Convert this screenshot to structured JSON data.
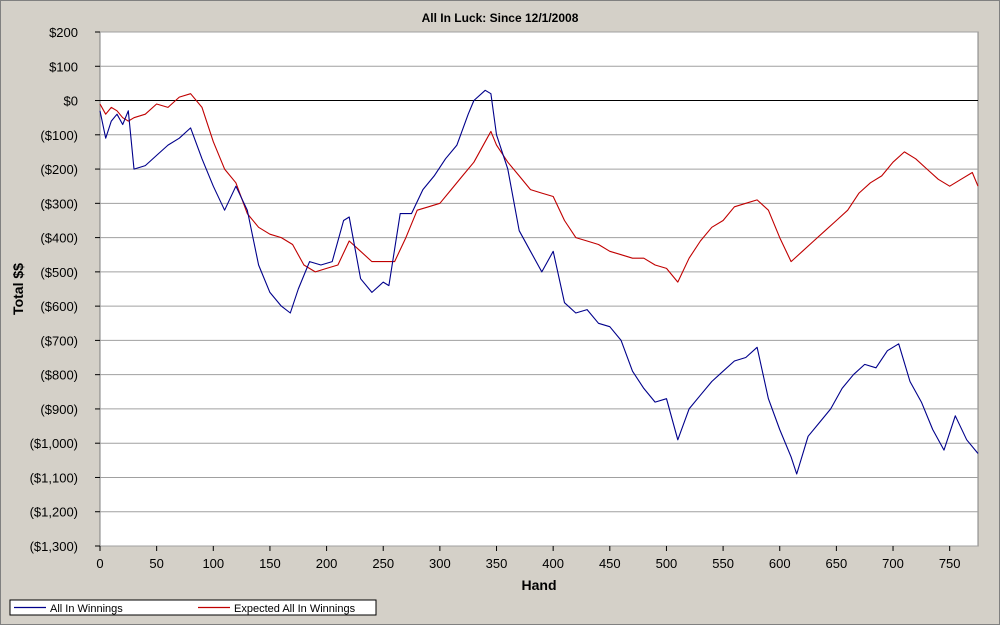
{
  "chart_data": {
    "type": "line",
    "title": "All In Luck: Since 12/1/2008",
    "xlabel": "Hand",
    "ylabel": "Total $$",
    "xlim": [
      0,
      775
    ],
    "ylim": [
      -1300,
      200
    ],
    "x_ticks": [
      0,
      50,
      100,
      150,
      200,
      250,
      300,
      350,
      400,
      450,
      500,
      550,
      600,
      650,
      700,
      750
    ],
    "y_ticks": [
      200,
      100,
      0,
      -100,
      -200,
      -300,
      -400,
      -500,
      -600,
      -700,
      -800,
      -900,
      -1000,
      -1100,
      -1200,
      -1300
    ],
    "y_tick_labels": [
      "$200",
      "$100",
      "$0",
      "($100)",
      "($200)",
      "($300)",
      "($400)",
      "($500)",
      "($600)",
      "($700)",
      "($800)",
      "($900)",
      "($1,000)",
      "($1,100)",
      "($1,200)",
      "($1,300)"
    ],
    "grid": true,
    "legend_position": "bottom-left",
    "series": [
      {
        "name": "All In Winnings",
        "color": "#00008b",
        "x": [
          0,
          5,
          10,
          15,
          20,
          25,
          30,
          40,
          50,
          60,
          70,
          80,
          90,
          100,
          110,
          120,
          130,
          140,
          150,
          160,
          168,
          175,
          185,
          195,
          205,
          215,
          220,
          230,
          240,
          250,
          255,
          265,
          275,
          285,
          295,
          305,
          315,
          325,
          330,
          340,
          345,
          350,
          360,
          370,
          380,
          390,
          400,
          410,
          420,
          430,
          440,
          450,
          460,
          470,
          480,
          490,
          500,
          510,
          520,
          530,
          540,
          550,
          560,
          570,
          580,
          590,
          600,
          610,
          615,
          625,
          635,
          645,
          655,
          665,
          675,
          685,
          695,
          705,
          715,
          725,
          735,
          745,
          755,
          765,
          775
        ],
        "y": [
          -30,
          -110,
          -60,
          -40,
          -70,
          -30,
          -200,
          -190,
          -160,
          -130,
          -110,
          -80,
          -170,
          -250,
          -320,
          -250,
          -320,
          -480,
          -560,
          -600,
          -620,
          -550,
          -470,
          -480,
          -470,
          -350,
          -340,
          -520,
          -560,
          -530,
          -540,
          -330,
          -330,
          -260,
          -220,
          -170,
          -130,
          -40,
          0,
          30,
          20,
          -100,
          -200,
          -380,
          -440,
          -500,
          -440,
          -590,
          -620,
          -610,
          -650,
          -660,
          -700,
          -790,
          -840,
          -880,
          -870,
          -990,
          -900,
          -860,
          -820,
          -790,
          -760,
          -750,
          -720,
          -870,
          -960,
          -1040,
          -1090,
          -980,
          -940,
          -900,
          -840,
          -800,
          -770,
          -780,
          -730,
          -710,
          -820,
          -880,
          -960,
          -1020,
          -920,
          -990,
          -1030
        ]
      },
      {
        "name": "Expected All In Winnings",
        "color": "#c00000",
        "x": [
          0,
          5,
          10,
          15,
          20,
          25,
          30,
          40,
          50,
          60,
          70,
          80,
          90,
          100,
          110,
          120,
          130,
          140,
          150,
          160,
          170,
          180,
          190,
          200,
          210,
          220,
          230,
          240,
          250,
          260,
          270,
          280,
          290,
          300,
          310,
          320,
          330,
          340,
          345,
          350,
          360,
          370,
          380,
          390,
          400,
          410,
          420,
          430,
          440,
          450,
          460,
          470,
          480,
          490,
          500,
          510,
          520,
          530,
          540,
          550,
          560,
          570,
          580,
          590,
          600,
          610,
          620,
          630,
          640,
          650,
          660,
          670,
          680,
          690,
          700,
          710,
          720,
          730,
          740,
          750,
          760,
          770,
          775
        ],
        "y": [
          -10,
          -40,
          -20,
          -30,
          -50,
          -60,
          -50,
          -40,
          -10,
          -20,
          10,
          20,
          -20,
          -120,
          -200,
          -240,
          -330,
          -370,
          -390,
          -400,
          -420,
          -480,
          -500,
          -490,
          -480,
          -410,
          -440,
          -470,
          -470,
          -470,
          -400,
          -320,
          -310,
          -300,
          -260,
          -220,
          -180,
          -120,
          -90,
          -130,
          -180,
          -220,
          -260,
          -270,
          -280,
          -350,
          -400,
          -410,
          -420,
          -440,
          -450,
          -460,
          -460,
          -480,
          -490,
          -530,
          -460,
          -410,
          -370,
          -350,
          -310,
          -300,
          -290,
          -320,
          -400,
          -470,
          -440,
          -410,
          -380,
          -350,
          -320,
          -270,
          -240,
          -220,
          -180,
          -150,
          -170,
          -200,
          -230,
          -250,
          -230,
          -210,
          -250
        ]
      }
    ]
  }
}
